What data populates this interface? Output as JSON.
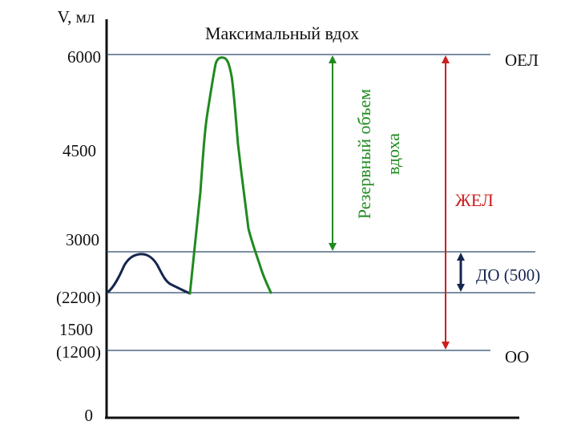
{
  "axis": {
    "ylabel": "V, мл",
    "zero": "0"
  },
  "ticks": [
    {
      "id": "6000",
      "label": "6000"
    },
    {
      "id": "4500",
      "label": "4500"
    },
    {
      "id": "3000",
      "label": "3000"
    },
    {
      "id": "2200",
      "label": "(2200)"
    },
    {
      "id": "1500",
      "label": "1500"
    },
    {
      "id": "1200",
      "label": "(1200)"
    }
  ],
  "title": "Максимальный вдох",
  "levels": {
    "oel": "ОЕЛ",
    "oo": "ОО"
  },
  "annotations": {
    "reserve_line1": "Резервный объем",
    "reserve_line2": "вдоха",
    "zhel": "ЖЕЛ",
    "do": "ДО (500)"
  },
  "colors": {
    "axis": "#111111",
    "grid": "#2c4a6b",
    "green": "#1f8a1f",
    "red": "#cc1f1f",
    "navy": "#16264f",
    "text": "#111111"
  }
}
